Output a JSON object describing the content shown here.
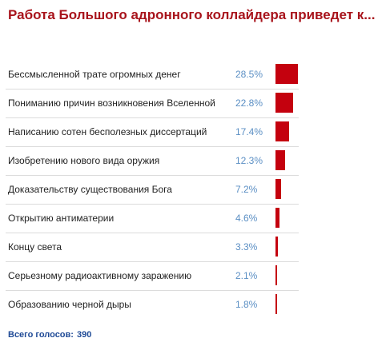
{
  "poll": {
    "title": "Работа Большого адронного коллайдера приведет к...",
    "bar_color": "#c4010e",
    "options": [
      {
        "label": "Бессмысленной трате огромных денег",
        "percent_text": "28.5%",
        "percent": 28.5
      },
      {
        "label": "Пониманию причин возникновения Вселенной",
        "percent_text": "22.8%",
        "percent": 22.8
      },
      {
        "label": "Написанию сотен бесполезных диссертаций",
        "percent_text": "17.4%",
        "percent": 17.4
      },
      {
        "label": "Изобретению нового вида оружия",
        "percent_text": "12.3%",
        "percent": 12.3
      },
      {
        "label": "Доказательству существования Бога",
        "percent_text": "7.2%",
        "percent": 7.2
      },
      {
        "label": "Открытию антиматерии",
        "percent_text": "4.6%",
        "percent": 4.6
      },
      {
        "label": "Концу света",
        "percent_text": "3.3%",
        "percent": 3.3
      },
      {
        "label": "Серьезному радиоактивному заражению",
        "percent_text": "2.1%",
        "percent": 2.1
      },
      {
        "label": "Образованию черной дыры",
        "percent_text": "1.8%",
        "percent": 1.8
      }
    ],
    "total_label": "Всего голосов:",
    "total_votes": "390"
  }
}
